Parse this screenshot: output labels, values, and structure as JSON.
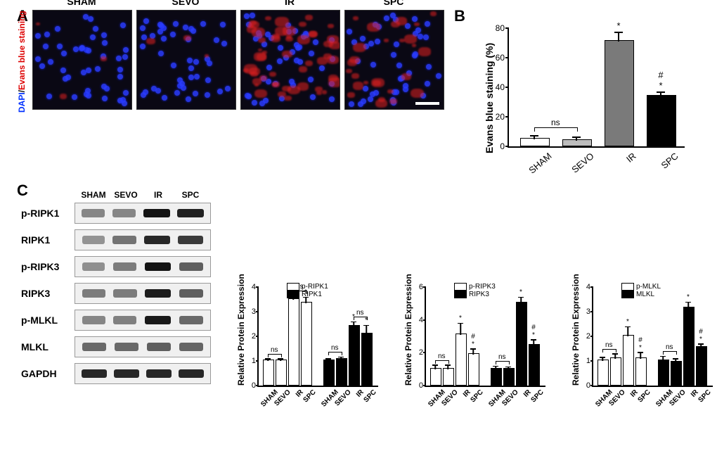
{
  "panelA": {
    "conditions": [
      "SHAM",
      "SEVO",
      "IR",
      "SPC"
    ],
    "y_axis_label_parts": {
      "dapi": "DAPI",
      "sep": "/",
      "eb": "Evans blue staining"
    },
    "image_bg": "#0a0814",
    "nuclei_color": "#2a3cff",
    "evans_color": "#e02020",
    "red_intensity": [
      0.05,
      0.05,
      0.9,
      0.45
    ],
    "scalebar_color": "#ffffff"
  },
  "panelB": {
    "type": "bar",
    "title": "",
    "ylabel": "Evans blue staining (%)",
    "categories": [
      "SHAM",
      "SEVO",
      "IR",
      "SPC"
    ],
    "values": [
      5,
      4,
      71,
      34
    ],
    "errors": [
      2,
      2,
      6,
      2.5
    ],
    "bar_colors": [
      "#ffffff",
      "#bdbdbd",
      "#7a7a7a",
      "#000000"
    ],
    "ylim": [
      0,
      80
    ],
    "ytick_step": 20,
    "annotations": [
      "",
      "",
      "*",
      "#\n*"
    ],
    "ns_pair": [
      0,
      1
    ]
  },
  "panelC": {
    "blot_conditions": [
      "SHAM",
      "SEVO",
      "IR",
      "SPC"
    ],
    "rows": [
      {
        "name": "p-RIPK1",
        "intensity": [
          0.35,
          0.35,
          0.95,
          0.88
        ]
      },
      {
        "name": "RIPK1",
        "intensity": [
          0.28,
          0.45,
          0.85,
          0.75
        ]
      },
      {
        "name": "p-RIPK3",
        "intensity": [
          0.3,
          0.4,
          0.95,
          0.55
        ]
      },
      {
        "name": "RIPK3",
        "intensity": [
          0.4,
          0.4,
          0.9,
          0.55
        ]
      },
      {
        "name": "p-MLKL",
        "intensity": [
          0.35,
          0.38,
          0.92,
          0.5
        ]
      },
      {
        "name": "MLKL",
        "intensity": [
          0.5,
          0.5,
          0.55,
          0.52
        ]
      },
      {
        "name": "GAPDH",
        "intensity": [
          0.85,
          0.85,
          0.85,
          0.85
        ]
      }
    ],
    "charts": [
      {
        "ylabel": "Relative Protein Expression",
        "ylim": [
          0,
          4
        ],
        "ytick_step": 1,
        "series": [
          {
            "name": "p-RIPK1",
            "color": "#ffffff",
            "values": [
              1.0,
              1.0,
              3.5,
              3.35
            ],
            "err": [
              0.1,
              0.1,
              0.15,
              0.25
            ],
            "anno": [
              "",
              "",
              "*",
              "*"
            ],
            "ns_pairs": [
              [
                0,
                1
              ],
              [
                2,
                3
              ]
            ]
          },
          {
            "name": "RIPK1",
            "color": "#000000",
            "values": [
              1.0,
              1.05,
              2.4,
              2.1
            ],
            "err": [
              0.1,
              0.12,
              0.2,
              0.35
            ],
            "anno": [
              "",
              "",
              "*",
              "*"
            ],
            "ns_pairs": [
              [
                0,
                1
              ],
              [
                2,
                3
              ]
            ]
          }
        ],
        "x": [
          "SHAM",
          "SEVO",
          "IR",
          "SPC",
          "SHAM",
          "SEVO",
          "IR",
          "SPC"
        ]
      },
      {
        "ylabel": "Relative Protein Expression",
        "ylim": [
          0,
          6
        ],
        "ytick_step": 2,
        "series": [
          {
            "name": "p-RIPK3",
            "color": "#ffffff",
            "values": [
              1.0,
              1.0,
              3.1,
              1.9
            ],
            "err": [
              0.25,
              0.25,
              0.7,
              0.35
            ],
            "anno": [
              "",
              "",
              "*",
              "#\n*"
            ],
            "ns_pairs": [
              [
                0,
                1
              ]
            ]
          },
          {
            "name": "RIPK3",
            "color": "#000000",
            "values": [
              1.0,
              1.0,
              5.0,
              2.45
            ],
            "err": [
              0.2,
              0.15,
              0.4,
              0.35
            ],
            "anno": [
              "",
              "",
              "*",
              "#\n*"
            ],
            "ns_pairs": [
              [
                0,
                1
              ]
            ]
          }
        ],
        "x": [
          "SHAM",
          "SEVO",
          "IR",
          "SPC",
          "SHAM",
          "SEVO",
          "IR",
          "SPC"
        ]
      },
      {
        "ylabel": "Relative Protein Expression",
        "ylim": [
          0,
          4
        ],
        "ytick_step": 1,
        "series": [
          {
            "name": "p-MLKL",
            "color": "#ffffff",
            "values": [
              1.0,
              1.1,
              2.0,
              1.1
            ],
            "err": [
              0.15,
              0.2,
              0.4,
              0.25
            ],
            "anno": [
              "",
              "",
              "*",
              "#\n*"
            ],
            "ns_pairs": [
              [
                0,
                1
              ]
            ]
          },
          {
            "name": "MLKL",
            "color": "#000000",
            "values": [
              1.0,
              0.95,
              3.15,
              1.55
            ],
            "err": [
              0.2,
              0.15,
              0.25,
              0.15
            ],
            "anno": [
              "",
              "",
              "*",
              "#\n*"
            ],
            "ns_pairs": [
              [
                0,
                1
              ]
            ]
          }
        ],
        "x": [
          "SHAM",
          "SEVO",
          "IR",
          "SPC",
          "SHAM",
          "SEVO",
          "IR",
          "SPC"
        ]
      }
    ]
  },
  "labels": {
    "A": "A",
    "B": "B",
    "C": "C",
    "ns": "ns"
  }
}
